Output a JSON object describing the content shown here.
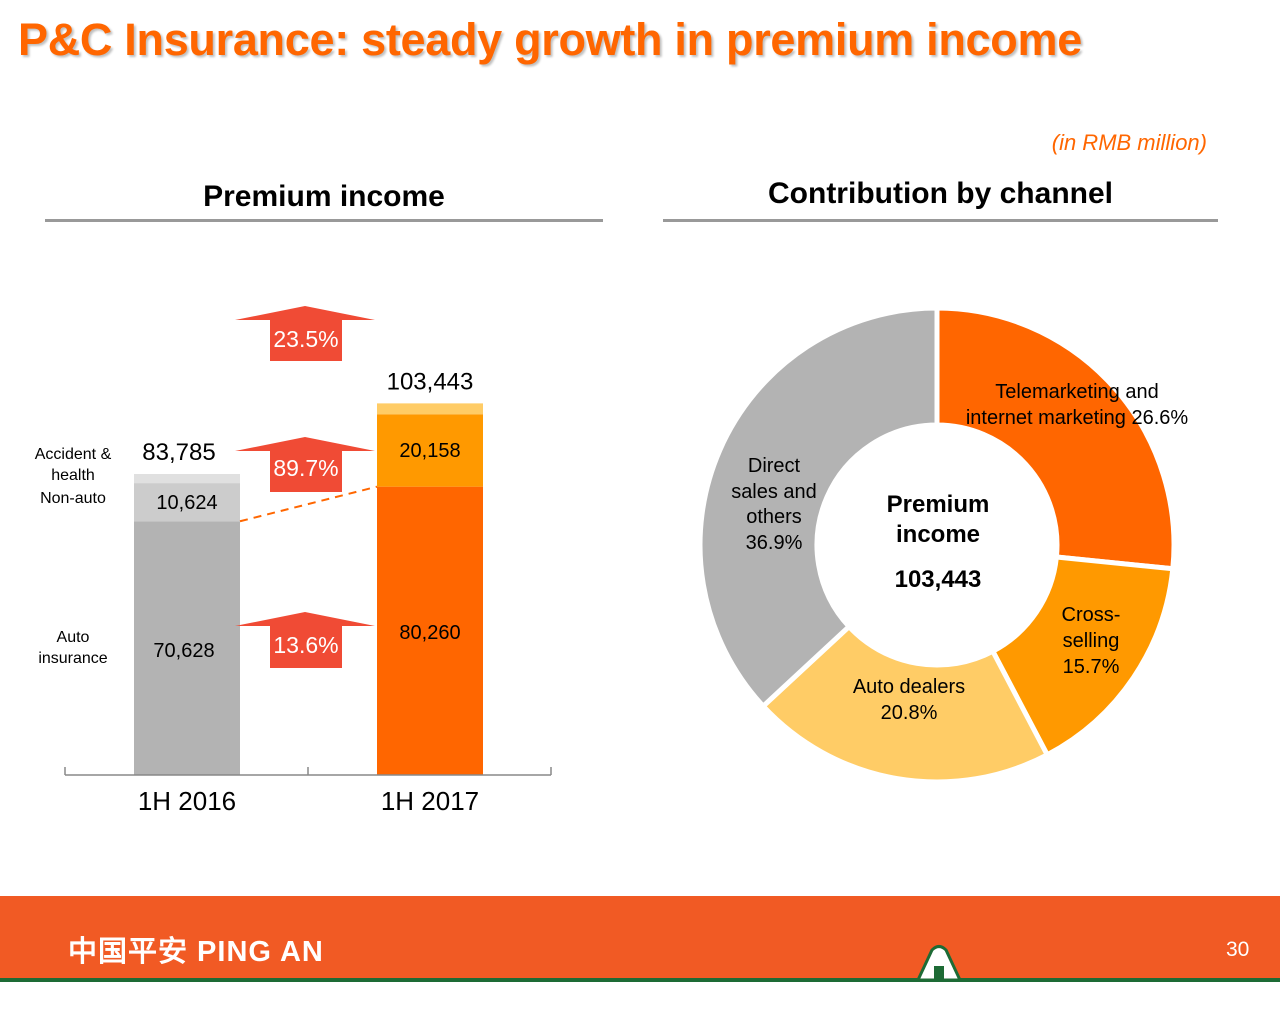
{
  "slide": {
    "title": "P&C Insurance: steady growth in premium income",
    "unit_note": "(in RMB million)",
    "page_number": "30",
    "logo_text": "中国平安 PING AN"
  },
  "colors": {
    "title": "#FF6600",
    "auto_2016": "#B3B3B3",
    "nonauto_2016": "#CCCCCC",
    "ah_2016": "#E0E0E0",
    "auto_2017": "#FF6600",
    "nonauto_2017": "#FF9900",
    "ah_2017": "#FFCC66",
    "arrow": "#F04B35",
    "footer": "#F15A24",
    "footer_line": "#1D6B35"
  },
  "chart_data": [
    {
      "type": "bar",
      "stacked": true,
      "title": "Premium income",
      "categories": [
        "1H 2016",
        "1H 2017"
      ],
      "series": [
        {
          "name": "Auto insurance",
          "values": [
            70628,
            80260
          ],
          "labels": [
            "70,628",
            "80,260"
          ]
        },
        {
          "name": "Non-auto",
          "values": [
            10624,
            20158
          ],
          "labels": [
            "10,624",
            "20,158"
          ]
        },
        {
          "name": "Accident & health",
          "values": [
            2533,
            3025
          ]
        }
      ],
      "totals": [
        83785,
        103443
      ],
      "total_labels": [
        "83,785",
        "103,443"
      ],
      "legend_labels": {
        "accident_health": [
          "Accident &",
          "health"
        ],
        "non_auto": "Non-auto",
        "auto": [
          "Auto",
          "insurance"
        ]
      },
      "growth_annotations": [
        {
          "target": "Total",
          "label": "23.5%"
        },
        {
          "target": "Non-auto",
          "label": "89.7%"
        },
        {
          "target": "Auto insurance",
          "label": "13.6%"
        }
      ]
    },
    {
      "type": "pie",
      "donut": true,
      "title": "Contribution by channel",
      "center_label": [
        "Premium",
        "income"
      ],
      "center_value": "103,443",
      "slices": [
        {
          "name": "Telemarketing and internet marketing",
          "value": 26.6,
          "label_lines": [
            "Telemarketing and",
            "internet marketing 26.6%"
          ],
          "color": "#FF6600"
        },
        {
          "name": "Cross-selling",
          "value": 15.7,
          "label_lines": [
            "Cross-",
            "selling",
            "15.7%"
          ],
          "color": "#FF9900"
        },
        {
          "name": "Auto dealers",
          "value": 20.8,
          "label_lines": [
            "Auto dealers",
            "20.8%"
          ],
          "color": "#FFCC66"
        },
        {
          "name": "Direct sales and others",
          "value": 36.9,
          "label_lines": [
            "Direct",
            "sales and",
            "others",
            "36.9%"
          ],
          "color": "#B3B3B3"
        }
      ]
    }
  ]
}
